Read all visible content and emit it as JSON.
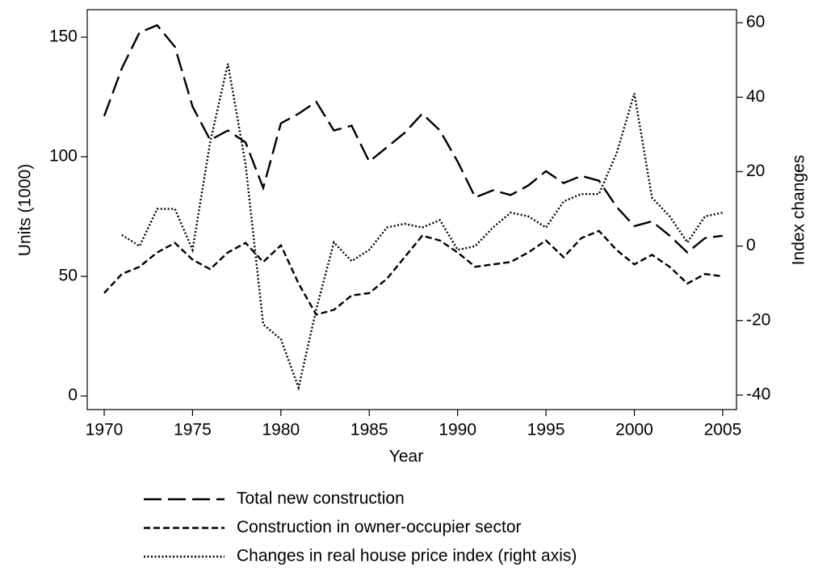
{
  "chart_data": {
    "type": "line",
    "x": [
      1970,
      1971,
      1972,
      1973,
      1974,
      1975,
      1976,
      1977,
      1978,
      1979,
      1980,
      1981,
      1982,
      1983,
      1984,
      1985,
      1986,
      1987,
      1988,
      1989,
      1990,
      1991,
      1992,
      1993,
      1994,
      1995,
      1996,
      1997,
      1998,
      1999,
      2000,
      2001,
      2002,
      2003,
      2004,
      2005
    ],
    "xlim": [
      1969.04,
      2005.78
    ],
    "xticks": [
      1970,
      1975,
      1980,
      1985,
      1990,
      1995,
      2000,
      2005
    ],
    "ylim": [
      -5.7,
      161.5
    ],
    "yticks": [
      0,
      50,
      100,
      150
    ],
    "y2lim": [
      -43.9,
      63.5
    ],
    "y2ticks": [
      -40,
      -20,
      0,
      20,
      40,
      60
    ],
    "x_label": "Year",
    "y_label": "Units (1000)",
    "y2_label": "Index changes",
    "grid": false,
    "legend": "bottom",
    "series": [
      {
        "name": "Total new construction",
        "color": "#000000",
        "dash": "long",
        "values": [
          117,
          137,
          152,
          155,
          146,
          121,
          107,
          111,
          106,
          87,
          114,
          118,
          123,
          111,
          113,
          98,
          104,
          110,
          118,
          111,
          98,
          83,
          86,
          84,
          88,
          94,
          89,
          92,
          90,
          79,
          71,
          73,
          67,
          60,
          66,
          67
        ]
      },
      {
        "name": "Construction in owner-occupier sector",
        "color": "#000000",
        "dash": "short",
        "values": [
          43,
          51,
          54,
          60,
          64,
          57,
          53,
          60,
          64,
          56,
          63,
          47,
          34,
          36,
          42,
          43,
          49,
          58,
          67,
          65,
          60,
          54,
          55,
          56,
          60,
          65,
          58,
          66,
          69,
          61,
          55,
          59,
          54,
          47,
          51,
          50
        ]
      },
      {
        "name": "Changes in real house price index (right axis)",
        "color": "#000000",
        "dash": "dotted",
        "axis": "y2",
        "values": [
          null,
          3,
          0,
          10,
          10,
          -1,
          28,
          49,
          22,
          -21,
          -25,
          -38,
          -17,
          1,
          -4,
          -1,
          5,
          6,
          5,
          7,
          -1,
          0,
          5,
          9,
          8,
          5,
          12,
          14,
          14,
          25,
          41,
          13,
          8,
          1,
          8,
          9
        ]
      }
    ]
  }
}
